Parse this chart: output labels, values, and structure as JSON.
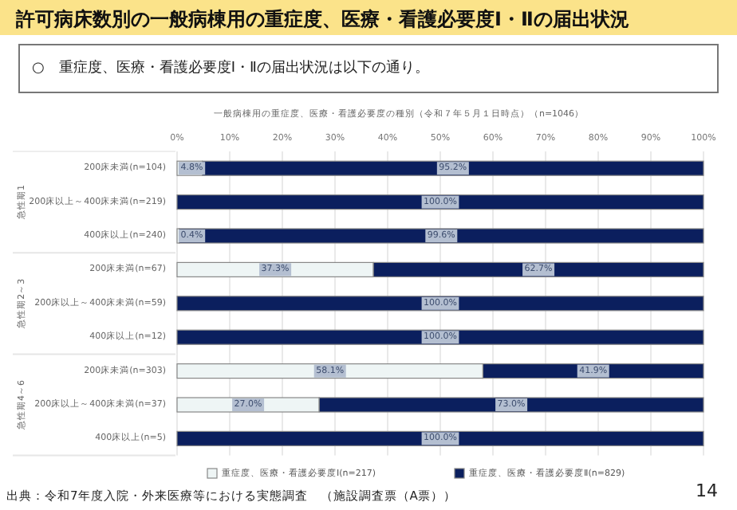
{
  "chart_data": {
    "type": "bar",
    "orientation": "horizontal",
    "stacked": true,
    "title": "許可病床数別の一般病棟用の重症度、医療・看護必要度Ⅰ・Ⅱの届出状況",
    "subtitle": "一般病棟用の重症度、医療・看護必要度の種別（令和７年５月１日時点）（n=1046）",
    "categories": [
      "200床未満(n=104)",
      "200床以上～400床未満(n=219)",
      "400床以上(n=240)",
      "200床未満(n=67)",
      "200床以上～400床未満(n=59)",
      "400床以上(n=12)",
      "200床未満(n=303)",
      "200床以上～400床未満(n=37)",
      "400床以上(n=5)"
    ],
    "series": [
      {
        "name": "重症度、医療・看護必要度Ⅰ(n=217)",
        "color": "#eef5f5",
        "values": [
          4.8,
          0,
          0.4,
          37.3,
          0,
          0,
          58.1,
          27.0,
          0
        ],
        "value_labels": [
          "4.8%",
          null,
          "0.4%",
          "37.3%",
          null,
          null,
          "58.1%",
          "27.0%",
          null
        ]
      },
      {
        "name": "重症度、医療・看護必要度Ⅱ(n=829)",
        "color": "#0b1f5e",
        "values": [
          95.2,
          100,
          99.6,
          62.7,
          100,
          100,
          41.9,
          73.0,
          100
        ],
        "value_labels": [
          "95.2%",
          "100.0%",
          "99.6%",
          "62.7%",
          "100.0%",
          "100.0%",
          "41.9%",
          "73.0%",
          "100.0%"
        ]
      }
    ],
    "xlim": [
      0,
      100
    ],
    "xticks": [
      {
        "value": 0,
        "label": "0%"
      },
      {
        "value": 10,
        "label": "10%"
      },
      {
        "value": 20,
        "label": "20%"
      },
      {
        "value": 30,
        "label": "30%"
      },
      {
        "value": 40,
        "label": "40%"
      },
      {
        "value": 50,
        "label": "50%"
      },
      {
        "value": 60,
        "label": "60%"
      },
      {
        "value": 70,
        "label": "70%"
      },
      {
        "value": 80,
        "label": "80%"
      },
      {
        "value": 90,
        "label": "90%"
      },
      {
        "value": 100,
        "label": "100%"
      }
    ],
    "grid": "x",
    "legend": "bottom",
    "annotations": [
      "○　重症度、医療・看護必要度Ⅰ・Ⅱの届出状況は以下の通り。",
      "急性期1",
      "急性期2～3",
      "急性期4～6",
      "出典：令和7年度入院・外来医療等における実態調査　（施設調査票（A票））",
      "14"
    ]
  }
}
